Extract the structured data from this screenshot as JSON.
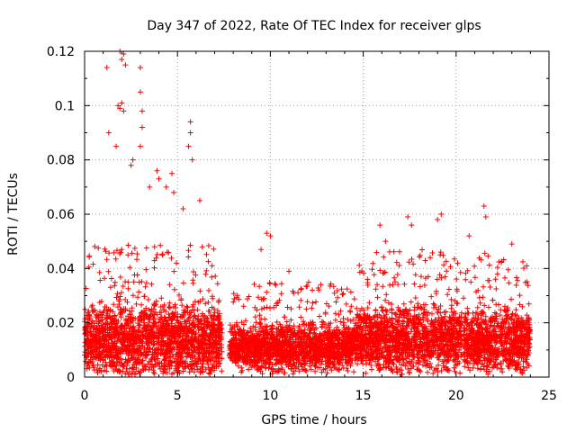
{
  "chart_data": {
    "type": "scatter",
    "title": "Day 347 of 2022, Rate Of TEC Index for receiver glps",
    "xlabel": "GPS time / hours",
    "ylabel": "ROTI / TECUs",
    "xlim": [
      0,
      25
    ],
    "ylim": [
      0,
      0.12
    ],
    "xticks": [
      0,
      5,
      10,
      15,
      20,
      25
    ],
    "yticks": [
      0,
      0.02,
      0.04,
      0.06,
      0.08,
      0.1,
      0.12
    ],
    "xtick_labels": [
      "0",
      "5",
      "10",
      "15",
      "20",
      "25"
    ],
    "ytick_labels": [
      "0",
      "0.02",
      "0.04",
      "0.06",
      "0.08",
      "0.1",
      "0.12"
    ],
    "grid": true,
    "marker": "plus",
    "series": [
      {
        "name": "ROTI",
        "color": "#ff0000",
        "segments": [
          {
            "start": 0.0,
            "end": 7.4,
            "base": 0.013,
            "spread": 0.012
          },
          {
            "start": 7.8,
            "end": 14.6,
            "base": 0.011,
            "spread": 0.008
          },
          {
            "start": 14.6,
            "end": 20.3,
            "base": 0.014,
            "spread": 0.011
          },
          {
            "start": 20.4,
            "end": 24.0,
            "base": 0.013,
            "spread": 0.011
          }
        ],
        "x": [
          1.2,
          1.9,
          2.0,
          2.1,
          2.2,
          1.8,
          1.9,
          2.0,
          2.1,
          1.3,
          3.0,
          3.0,
          3.1,
          3.1,
          3.0,
          2.6,
          3.9,
          4.0,
          4.4,
          5.7,
          5.7,
          5.6,
          5.8,
          4.7,
          6.2,
          9.8,
          10.0,
          9.5,
          11.0,
          15.9,
          16.2,
          17.4,
          17.6,
          19.2,
          19.0,
          21.5,
          21.6,
          20.7,
          23.0,
          23.8,
          3.5,
          1.7,
          2.5,
          4.8,
          5.3
        ],
        "y": [
          0.114,
          0.12,
          0.117,
          0.119,
          0.115,
          0.1,
          0.099,
          0.101,
          0.098,
          0.09,
          0.114,
          0.105,
          0.098,
          0.092,
          0.085,
          0.08,
          0.076,
          0.073,
          0.07,
          0.094,
          0.09,
          0.085,
          0.08,
          0.075,
          0.065,
          0.053,
          0.052,
          0.047,
          0.039,
          0.056,
          0.05,
          0.059,
          0.056,
          0.06,
          0.058,
          0.063,
          0.059,
          0.052,
          0.049,
          0.041,
          0.07,
          0.085,
          0.078,
          0.068,
          0.062
        ]
      }
    ]
  }
}
